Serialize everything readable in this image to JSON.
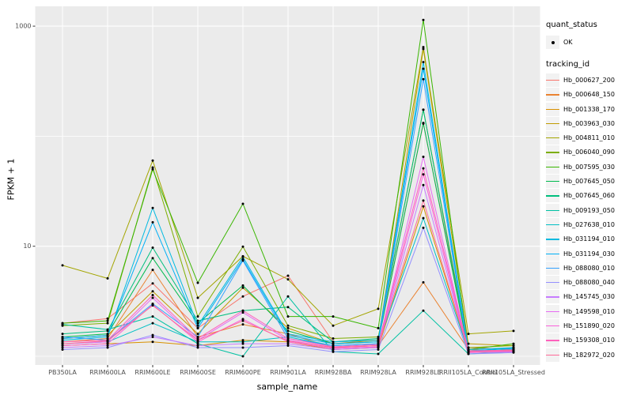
{
  "chart_data": {
    "type": "line",
    "title": "",
    "xlabel": "sample_name",
    "ylabel": "FPKM + 1",
    "y_scale": "log10",
    "ylim": [
      1,
      1300
    ],
    "grid": true,
    "y_tick_labels": [
      "1000",
      "10"
    ],
    "y_tick_values": [
      1000,
      10
    ],
    "y_gridline_values": [
      1,
      10,
      100,
      1000
    ],
    "categories": [
      "PB350LA",
      "RRIM600LA",
      "RRIM600LE",
      "RRIM600SE",
      "RRIM600PE",
      "RRIM901LA",
      "RRIM928BA",
      "RRIM928LA",
      "RRIM928LE",
      "RRII105LA_Control",
      "RRII105LA_Stressed"
    ],
    "legend_position": "right",
    "legend": {
      "quant_status": {
        "title": "quant_status",
        "items": [
          {
            "label": "OK",
            "marker": "point",
            "color": "#000000"
          }
        ]
      },
      "tracking_id": {
        "title": "tracking_id"
      }
    },
    "point_color": "#000000",
    "colors": {
      "panel_bg": "#EBEBEB",
      "grid": "#FFFFFF",
      "tick_text": "#4D4D4D",
      "axis_text": "#000000",
      "legend_key_bg": "#F2F2F2"
    },
    "series": [
      {
        "name": "Hb_000627_200",
        "color": "#F8766D",
        "values": [
          2.0,
          2.2,
          4.6,
          1.8,
          3.5,
          5.4,
          1.35,
          1.4,
          130,
          1.2,
          1.15
        ]
      },
      {
        "name": "Hb_000648_150",
        "color": "#EA8331",
        "values": [
          1.35,
          1.45,
          6.1,
          1.5,
          1.95,
          1.6,
          1.2,
          1.25,
          4.7,
          1.15,
          1.1
        ]
      },
      {
        "name": "Hb_001338_170",
        "color": "#D89000",
        "values": [
          1.25,
          1.3,
          1.35,
          1.25,
          1.4,
          1.35,
          1.15,
          1.2,
          23,
          1.1,
          1.15
        ]
      },
      {
        "name": "Hb_003963_030",
        "color": "#C09B00",
        "values": [
          1.45,
          1.55,
          3.9,
          1.6,
          4.2,
          1.8,
          1.3,
          1.4,
          620,
          1.3,
          1.25
        ]
      },
      {
        "name": "Hb_004811_010",
        "color": "#A3A500",
        "values": [
          6.7,
          5.1,
          60,
          3.4,
          8.1,
          5.0,
          1.9,
          2.7,
          645,
          1.6,
          1.7
        ]
      },
      {
        "name": "Hb_006040_090",
        "color": "#7CAE00",
        "values": [
          1.9,
          2.0,
          52,
          2.3,
          9.9,
          1.9,
          1.45,
          1.5,
          174,
          1.2,
          1.25
        ]
      },
      {
        "name": "Hb_007595_030",
        "color": "#39B600",
        "values": [
          2.0,
          2.1,
          50,
          4.65,
          24.3,
          2.3,
          2.3,
          1.8,
          1140,
          1.15,
          1.3
        ]
      },
      {
        "name": "Hb_007645_050",
        "color": "#00BB4E",
        "values": [
          1.5,
          1.6,
          7.8,
          2.0,
          4.4,
          1.7,
          1.3,
          1.35,
          132,
          1.1,
          1.2
        ]
      },
      {
        "name": "Hb_007645_060",
        "color": "#00BF7D",
        "values": [
          1.6,
          1.7,
          9.7,
          2.1,
          2.6,
          2.8,
          1.35,
          1.45,
          174,
          1.12,
          1.18
        ]
      },
      {
        "name": "Hb_009193_050",
        "color": "#00C1A3",
        "values": [
          1.95,
          1.75,
          2.3,
          1.3,
          1.0,
          3.5,
          1.1,
          1.05,
          2.6,
          1.05,
          1.1
        ]
      },
      {
        "name": "Hb_027638_010",
        "color": "#00BFC4",
        "values": [
          1.3,
          1.35,
          2.0,
          1.35,
          1.35,
          1.5,
          1.25,
          1.3,
          18,
          1.1,
          1.12
        ]
      },
      {
        "name": "Hb_031194_010",
        "color": "#00BAE0",
        "values": [
          1.4,
          1.5,
          22.3,
          1.9,
          8.0,
          1.6,
          1.35,
          1.4,
          471,
          1.15,
          1.2
        ]
      },
      {
        "name": "Hb_031194_030",
        "color": "#00B0F6",
        "values": [
          1.45,
          1.55,
          16.5,
          1.8,
          7.6,
          1.55,
          1.3,
          1.35,
          410,
          1.12,
          1.18
        ]
      },
      {
        "name": "Hb_088080_010",
        "color": "#35A2FF",
        "values": [
          1.5,
          1.4,
          3.0,
          1.5,
          7.4,
          1.45,
          1.25,
          1.3,
          330,
          1.1,
          1.15
        ]
      },
      {
        "name": "Hb_088080_040",
        "color": "#9590FF",
        "values": [
          1.15,
          1.2,
          1.56,
          1.2,
          1.2,
          1.25,
          1.1,
          1.15,
          14.7,
          1.05,
          1.08
        ]
      },
      {
        "name": "Hb_145745_030",
        "color": "#C77CFF",
        "values": [
          1.2,
          1.25,
          1.5,
          1.25,
          1.3,
          1.3,
          1.15,
          1.2,
          36,
          1.08,
          1.1
        ]
      },
      {
        "name": "Hb_149598_010",
        "color": "#E76BF3",
        "values": [
          1.3,
          1.35,
          3.4,
          1.4,
          2.5,
          1.4,
          1.2,
          1.25,
          65,
          1.1,
          1.12
        ]
      },
      {
        "name": "Hb_151890_020",
        "color": "#FA62DB",
        "values": [
          1.25,
          1.3,
          2.95,
          1.35,
          2.18,
          1.35,
          1.18,
          1.22,
          45,
          1.08,
          1.1
        ]
      },
      {
        "name": "Hb_159308_010",
        "color": "#FF62BC",
        "values": [
          1.35,
          1.4,
          3.6,
          1.45,
          2.6,
          1.45,
          1.22,
          1.28,
          51,
          1.12,
          1.14
        ]
      },
      {
        "name": "Hb_182972_020",
        "color": "#FF6A98",
        "values": [
          1.3,
          1.38,
          2.9,
          1.4,
          2.1,
          1.38,
          1.2,
          1.25,
          26,
          1.1,
          1.13
        ]
      }
    ]
  }
}
